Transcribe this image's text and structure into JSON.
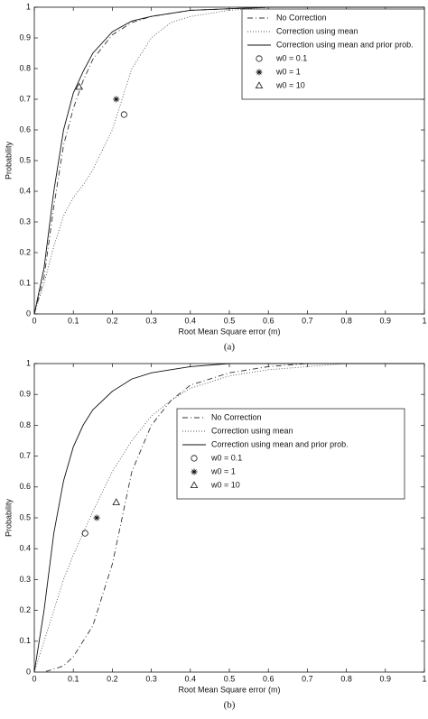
{
  "chart_data": [
    {
      "type": "line",
      "caption": "(a)",
      "xlabel": "Root Mean Square error (m)",
      "ylabel": "Probability",
      "xlim": [
        0,
        1
      ],
      "ylim": [
        0,
        1
      ],
      "xticks": [
        0,
        0.1,
        0.2,
        0.3,
        0.4,
        0.5,
        0.6,
        0.7,
        0.8,
        0.9,
        1
      ],
      "yticks": [
        0,
        0.1,
        0.2,
        0.3,
        0.4,
        0.5,
        0.6,
        0.7,
        0.8,
        0.9,
        1
      ],
      "legend": "upper right",
      "x": [
        0,
        0.025,
        0.05,
        0.075,
        0.1,
        0.125,
        0.15,
        0.2,
        0.25,
        0.3,
        0.35,
        0.4,
        0.5,
        0.6,
        0.7,
        0.8,
        1
      ],
      "series": [
        {
          "name": "No Correction",
          "color": "#333333",
          "dash": "6,3,1,3",
          "values": [
            0,
            0.12,
            0.35,
            0.55,
            0.67,
            0.76,
            0.83,
            0.91,
            0.95,
            0.97,
            0.98,
            0.99,
            0.995,
            1,
            1,
            1,
            1
          ]
        },
        {
          "name": "Correction using mean",
          "color": "#555555",
          "dash": "1,2",
          "values": [
            0,
            0.1,
            0.22,
            0.32,
            0.38,
            0.42,
            0.47,
            0.6,
            0.8,
            0.9,
            0.95,
            0.97,
            0.99,
            1,
            1,
            1,
            1
          ]
        },
        {
          "name": "Correction using mean and prior prob.",
          "color": "#111111",
          "dash": "none",
          "values": [
            0,
            0.15,
            0.4,
            0.6,
            0.72,
            0.79,
            0.85,
            0.92,
            0.955,
            0.97,
            0.98,
            0.99,
            0.995,
            1,
            1,
            1,
            1
          ]
        }
      ],
      "points": [
        {
          "name": "w0 = 0.1",
          "marker": "circle",
          "x": 0.23,
          "y": 0.65
        },
        {
          "name": "w0 = 1",
          "marker": "star",
          "x": 0.21,
          "y": 0.7
        },
        {
          "name": "w0 = 10",
          "marker": "triangle",
          "x": 0.115,
          "y": 0.74
        }
      ]
    },
    {
      "type": "line",
      "caption": "(b)",
      "xlabel": "Root Mean Square error (m)",
      "ylabel": "Probability",
      "xlim": [
        0,
        1
      ],
      "ylim": [
        0,
        1
      ],
      "xticks": [
        0,
        0.1,
        0.2,
        0.3,
        0.4,
        0.5,
        0.6,
        0.7,
        0.8,
        0.9,
        1
      ],
      "yticks": [
        0,
        0.1,
        0.2,
        0.3,
        0.4,
        0.5,
        0.6,
        0.7,
        0.8,
        0.9,
        1
      ],
      "legend": "center",
      "x": [
        0,
        0.025,
        0.05,
        0.075,
        0.1,
        0.125,
        0.15,
        0.2,
        0.25,
        0.3,
        0.35,
        0.4,
        0.5,
        0.6,
        0.7,
        0.8,
        1
      ],
      "series": [
        {
          "name": "No Correction",
          "color": "#333333",
          "dash": "6,3,1,3",
          "values": [
            0,
            0,
            0.01,
            0.02,
            0.05,
            0.1,
            0.15,
            0.35,
            0.65,
            0.8,
            0.88,
            0.93,
            0.97,
            0.99,
            1,
            1,
            1
          ]
        },
        {
          "name": "Correction using mean",
          "color": "#555555",
          "dash": "1,2",
          "values": [
            0,
            0.1,
            0.2,
            0.3,
            0.38,
            0.45,
            0.52,
            0.65,
            0.75,
            0.83,
            0.88,
            0.92,
            0.96,
            0.98,
            0.99,
            1,
            1
          ]
        },
        {
          "name": "Correction using mean and prior prob.",
          "color": "#111111",
          "dash": "none",
          "values": [
            0,
            0.2,
            0.45,
            0.62,
            0.73,
            0.8,
            0.85,
            0.91,
            0.95,
            0.97,
            0.98,
            0.99,
            1,
            1,
            1,
            1,
            1
          ]
        }
      ],
      "points": [
        {
          "name": "w0 = 0.1",
          "marker": "circle",
          "x": 0.13,
          "y": 0.45
        },
        {
          "name": "w0 = 1",
          "marker": "star",
          "x": 0.16,
          "y": 0.5
        },
        {
          "name": "w0 = 10",
          "marker": "triangle",
          "x": 0.21,
          "y": 0.55
        }
      ]
    }
  ]
}
